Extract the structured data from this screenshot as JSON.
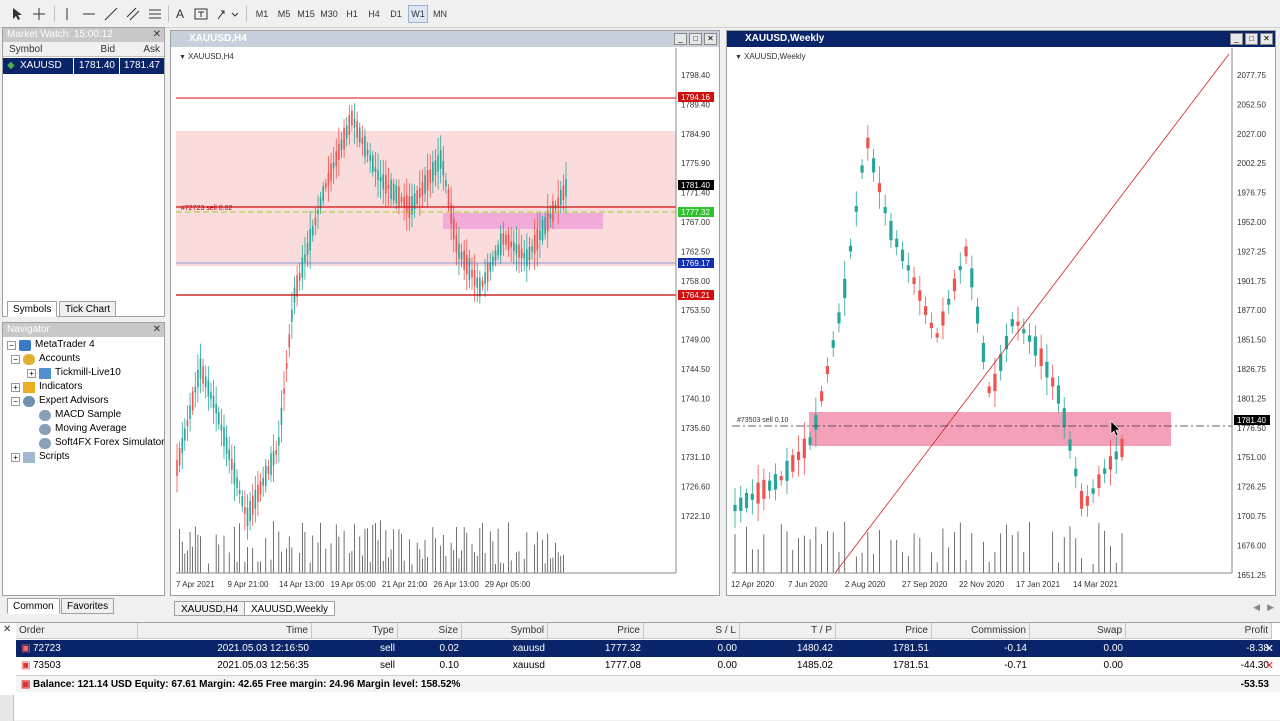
{
  "toolbar": {
    "timeframes": [
      "M1",
      "M5",
      "M15",
      "M30",
      "H1",
      "H4",
      "D1",
      "W1",
      "MN"
    ],
    "active_timeframe": "W1"
  },
  "market_watch": {
    "title": "Market Watch: 15:00:12",
    "col_symbol": "Symbol",
    "col_bid": "Bid",
    "col_ask": "Ask",
    "row": {
      "symbol": "XAUUSD",
      "bid": "1781.40",
      "ask": "1781.47"
    },
    "tab_symbols": "Symbols",
    "tab_tick": "Tick Chart"
  },
  "navigator": {
    "title": "Navigator",
    "items": [
      {
        "label": "MetaTrader 4",
        "icon": "metatrader-icon"
      },
      {
        "label": "Accounts",
        "icon": "accounts-icon"
      },
      {
        "label": "Tickmill-Live10",
        "icon": "account-icon"
      },
      {
        "label": "Indicators",
        "icon": "indicators-icon"
      },
      {
        "label": "Expert Advisors",
        "icon": "experts-icon"
      },
      {
        "label": "MACD Sample",
        "icon": "expert-icon"
      },
      {
        "label": "Moving Average",
        "icon": "expert-icon"
      },
      {
        "label": "Soft4FX Forex Simulator",
        "icon": "expert-icon"
      },
      {
        "label": "Scripts",
        "icon": "scripts-icon"
      }
    ],
    "tab_common": "Common",
    "tab_favorites": "Favorites"
  },
  "chart_h4": {
    "title": "XAUUSD,H4",
    "label": "XAUUSD,H4",
    "prices": [
      "1798.40",
      "1789.40",
      "1784.90",
      "1775.90",
      "1771.40",
      "1767.00",
      "1762.50",
      "1758.00",
      "1753.50",
      "1749.00",
      "1744.50",
      "1740.10",
      "1735.60",
      "1731.10",
      "1726.60",
      "1722.10"
    ],
    "dates": [
      "7 Apr 2021",
      "9 Apr 21:00",
      "14 Apr 13:00",
      "19 Apr 05:00",
      "21 Apr 21:00",
      "26 Apr 13:00",
      "29 Apr 05:00"
    ],
    "tags": {
      "red_top": "1794.16",
      "bid": "1781.40",
      "green": "1777.32",
      "blue": "1769.17",
      "red_bottom": "1764.21"
    },
    "order_label": "#72723 sell 0.02"
  },
  "chart_w1": {
    "title": "XAUUSD,Weekly",
    "label": "XAUUSD,Weekly",
    "prices": [
      "2077.75",
      "2052.50",
      "2027.00",
      "2002.25",
      "1976.75",
      "1952.00",
      "1927.25",
      "1901.75",
      "1877.00",
      "1851.50",
      "1826.75",
      "1801.25",
      "1776.50",
      "1751.00",
      "1726.25",
      "1700.75",
      "1676.00",
      "1651.25"
    ],
    "dates": [
      "12 Apr 2020",
      "7 Jun 2020",
      "2 Aug 2020",
      "27 Sep 2020",
      "22 Nov 2020",
      "17 Jan 2021",
      "14 Mar 2021"
    ],
    "tags": {
      "bid": "1781.40"
    },
    "order_label": "#73503 sell 0.10"
  },
  "chart_tabs": [
    "XAUUSD,H4",
    "XAUUSD,Weekly"
  ],
  "terminal": {
    "headers": [
      "Order",
      "Time",
      "Type",
      "Size",
      "Symbol",
      "Price",
      "S / L",
      "T / P",
      "Price",
      "Commission",
      "Swap",
      "Profit"
    ],
    "rows": [
      [
        "72723",
        "2021.05.03 12:16:50",
        "sell",
        "0.02",
        "xauusd",
        "1777.32",
        "0.00",
        "1480.42",
        "1781.51",
        "-0.14",
        "0.00",
        "-8.38"
      ],
      [
        "73503",
        "2021.05.03 12:56:35",
        "sell",
        "0.10",
        "xauusd",
        "1777.08",
        "0.00",
        "1485.02",
        "1781.51",
        "-0.71",
        "0.00",
        "-44.30"
      ]
    ],
    "balance": "Balance: 121.14 USD  Equity: 67.61  Margin: 42.65  Free margin: 24.96  Margin level: 158.52%",
    "total": "-53.53"
  },
  "colors": {
    "bull": "#26a69a",
    "bear": "#ef5350",
    "selection": "#0a246a"
  }
}
